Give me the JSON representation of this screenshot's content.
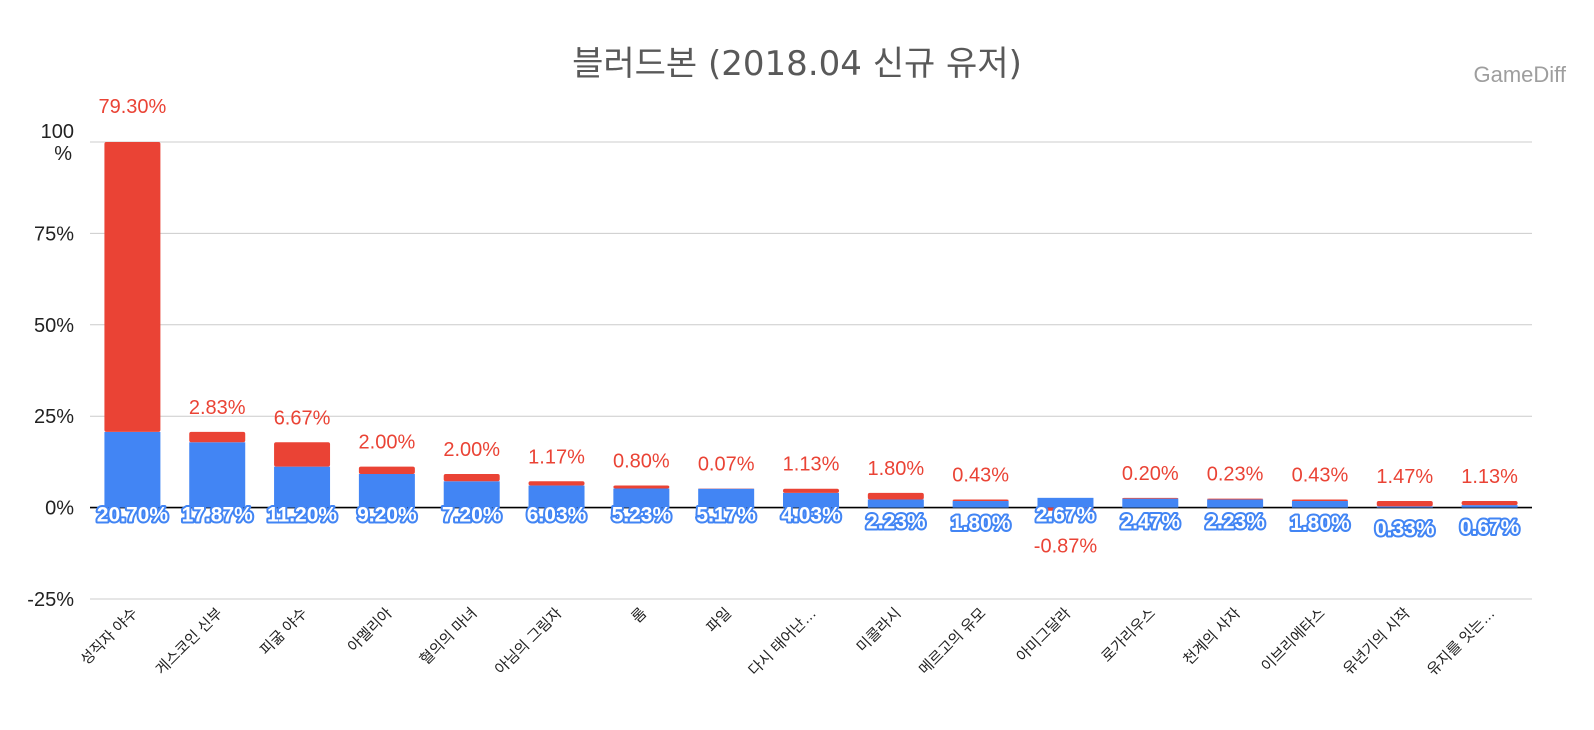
{
  "title": "블러드본 (2018.04 신규 유저)",
  "watermark": "GameDiff",
  "colors": {
    "blue": "#4285f4",
    "red": "#ea4335",
    "grid": "#cccccc",
    "axis": "#000000",
    "text": "#222222"
  },
  "chart_data": {
    "type": "bar",
    "stacked": true,
    "title": "블러드본 (2018.04 신규 유저)",
    "xlabel": "",
    "ylabel": "",
    "ylim": [
      -25,
      100
    ],
    "yticks": [
      {
        "value": 100,
        "label": "100\n%"
      },
      {
        "value": 75,
        "label": "75%"
      },
      {
        "value": 50,
        "label": "50%"
      },
      {
        "value": 25,
        "label": "25%"
      },
      {
        "value": 0,
        "label": "0%"
      },
      {
        "value": -25,
        "label": "-25%"
      }
    ],
    "grid": true,
    "legend": "none",
    "categories": [
      "성직자 야수",
      "게스코인 신부",
      "피굶 야수",
      "아멜리아",
      "혈의의 마녀",
      "아님의 그림자",
      "롬",
      "파일",
      "다시 태어난…",
      "미콜라시",
      "메르고의 유모",
      "아미그달라",
      "로가리우스",
      "천계의 사자",
      "이브리에타스",
      "유년기의 시작",
      "유지를 잇는…"
    ],
    "series": [
      {
        "color": "#4285f4",
        "values": [
          20.7,
          17.87,
          11.2,
          9.2,
          7.2,
          6.03,
          5.23,
          5.17,
          4.03,
          2.23,
          1.8,
          2.67,
          2.47,
          2.23,
          1.8,
          0.33,
          0.67
        ],
        "labels": [
          "20.70%",
          "17.87%",
          "11.20%",
          "9.20%",
          "7.20%",
          "6.03%",
          "5.23%",
          "5.17%",
          "4.03%",
          "2.23%",
          "1.80%",
          "2.67%",
          "2.47%",
          "2.23%",
          "1.80%",
          "0.33%",
          "0.67%"
        ]
      },
      {
        "color": "#ea4335",
        "values": [
          79.3,
          2.83,
          6.67,
          2.0,
          2.0,
          1.17,
          0.8,
          0.07,
          1.13,
          1.8,
          0.43,
          -0.87,
          0.2,
          0.23,
          0.43,
          1.47,
          1.13
        ],
        "labels": [
          "79.30%",
          "2.83%",
          "6.67%",
          "2.00%",
          "2.00%",
          "1.17%",
          "0.80%",
          "0.07%",
          "1.13%",
          "1.80%",
          "0.43%",
          "-0.87%",
          "0.20%",
          "0.23%",
          "0.43%",
          "1.47%",
          "1.13%"
        ]
      }
    ]
  }
}
